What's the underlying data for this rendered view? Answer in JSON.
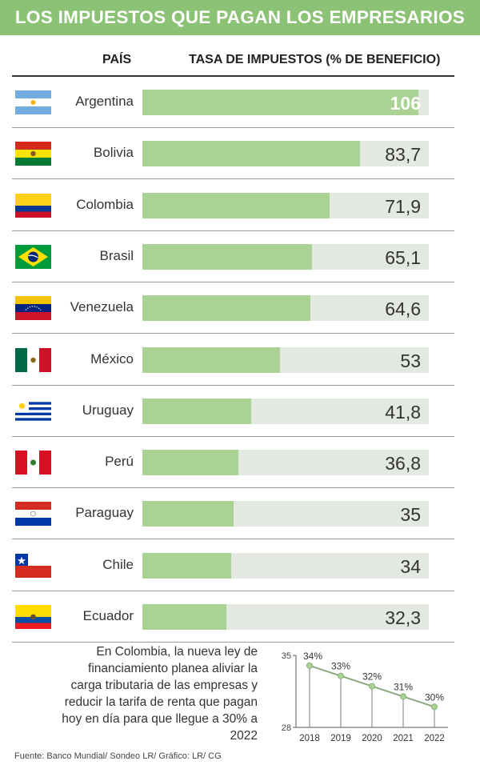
{
  "title": "LOS IMPUESTOS QUE PAGAN LOS EMPRESARIOS",
  "headers": {
    "country": "PAÍS",
    "rate": "TASA DE IMPUESTOS (% DE BENEFICIO)"
  },
  "chart_data": [
    {
      "type": "bar",
      "orientation": "horizontal",
      "categories": [
        "Argentina",
        "Bolivia",
        "Colombia",
        "Brasil",
        "Venezuela",
        "México",
        "Uruguay",
        "Perú",
        "Paraguay",
        "Chile",
        "Ecuador"
      ],
      "values": [
        106,
        83.7,
        71.9,
        65.1,
        64.6,
        53,
        41.8,
        36.8,
        35,
        34,
        32.3
      ],
      "value_labels": [
        "106",
        "83,7",
        "71,9",
        "65,1",
        "64,6",
        "53",
        "41,8",
        "36,8",
        "35",
        "34",
        "32,3"
      ],
      "flags": [
        "argentina-flag",
        "bolivia-flag",
        "colombia-flag",
        "brazil-flag",
        "venezuela-flag",
        "mexico-flag",
        "uruguay-flag",
        "peru-flag",
        "paraguay-flag",
        "chile-flag",
        "ecuador-flag"
      ],
      "xlim": [
        0,
        110
      ]
    },
    {
      "type": "line",
      "x": [
        "2018",
        "2019",
        "2020",
        "2021",
        "2022"
      ],
      "values": [
        34,
        33,
        32,
        31,
        30
      ],
      "data_labels": [
        "34%",
        "33%",
        "32%",
        "31%",
        "30%"
      ],
      "ylim": [
        28,
        35
      ],
      "yticks": [
        "35",
        "28"
      ]
    }
  ],
  "note": "En Colombia, la nueva ley de financiamiento planea aliviar la carga tributaria de las empresas y reducir la tarifa de renta que pagan hoy en día para que llegue a 30% a 2022",
  "source": "Fuente: Banco Mundial/ Sondeo LR/ Gráfico: LR/ CG",
  "colors": {
    "title_bg": "#8cc276",
    "bar": "#a9d294",
    "track": "#e3e8e0",
    "line": "#8aa880",
    "marker": "#a9d294"
  }
}
